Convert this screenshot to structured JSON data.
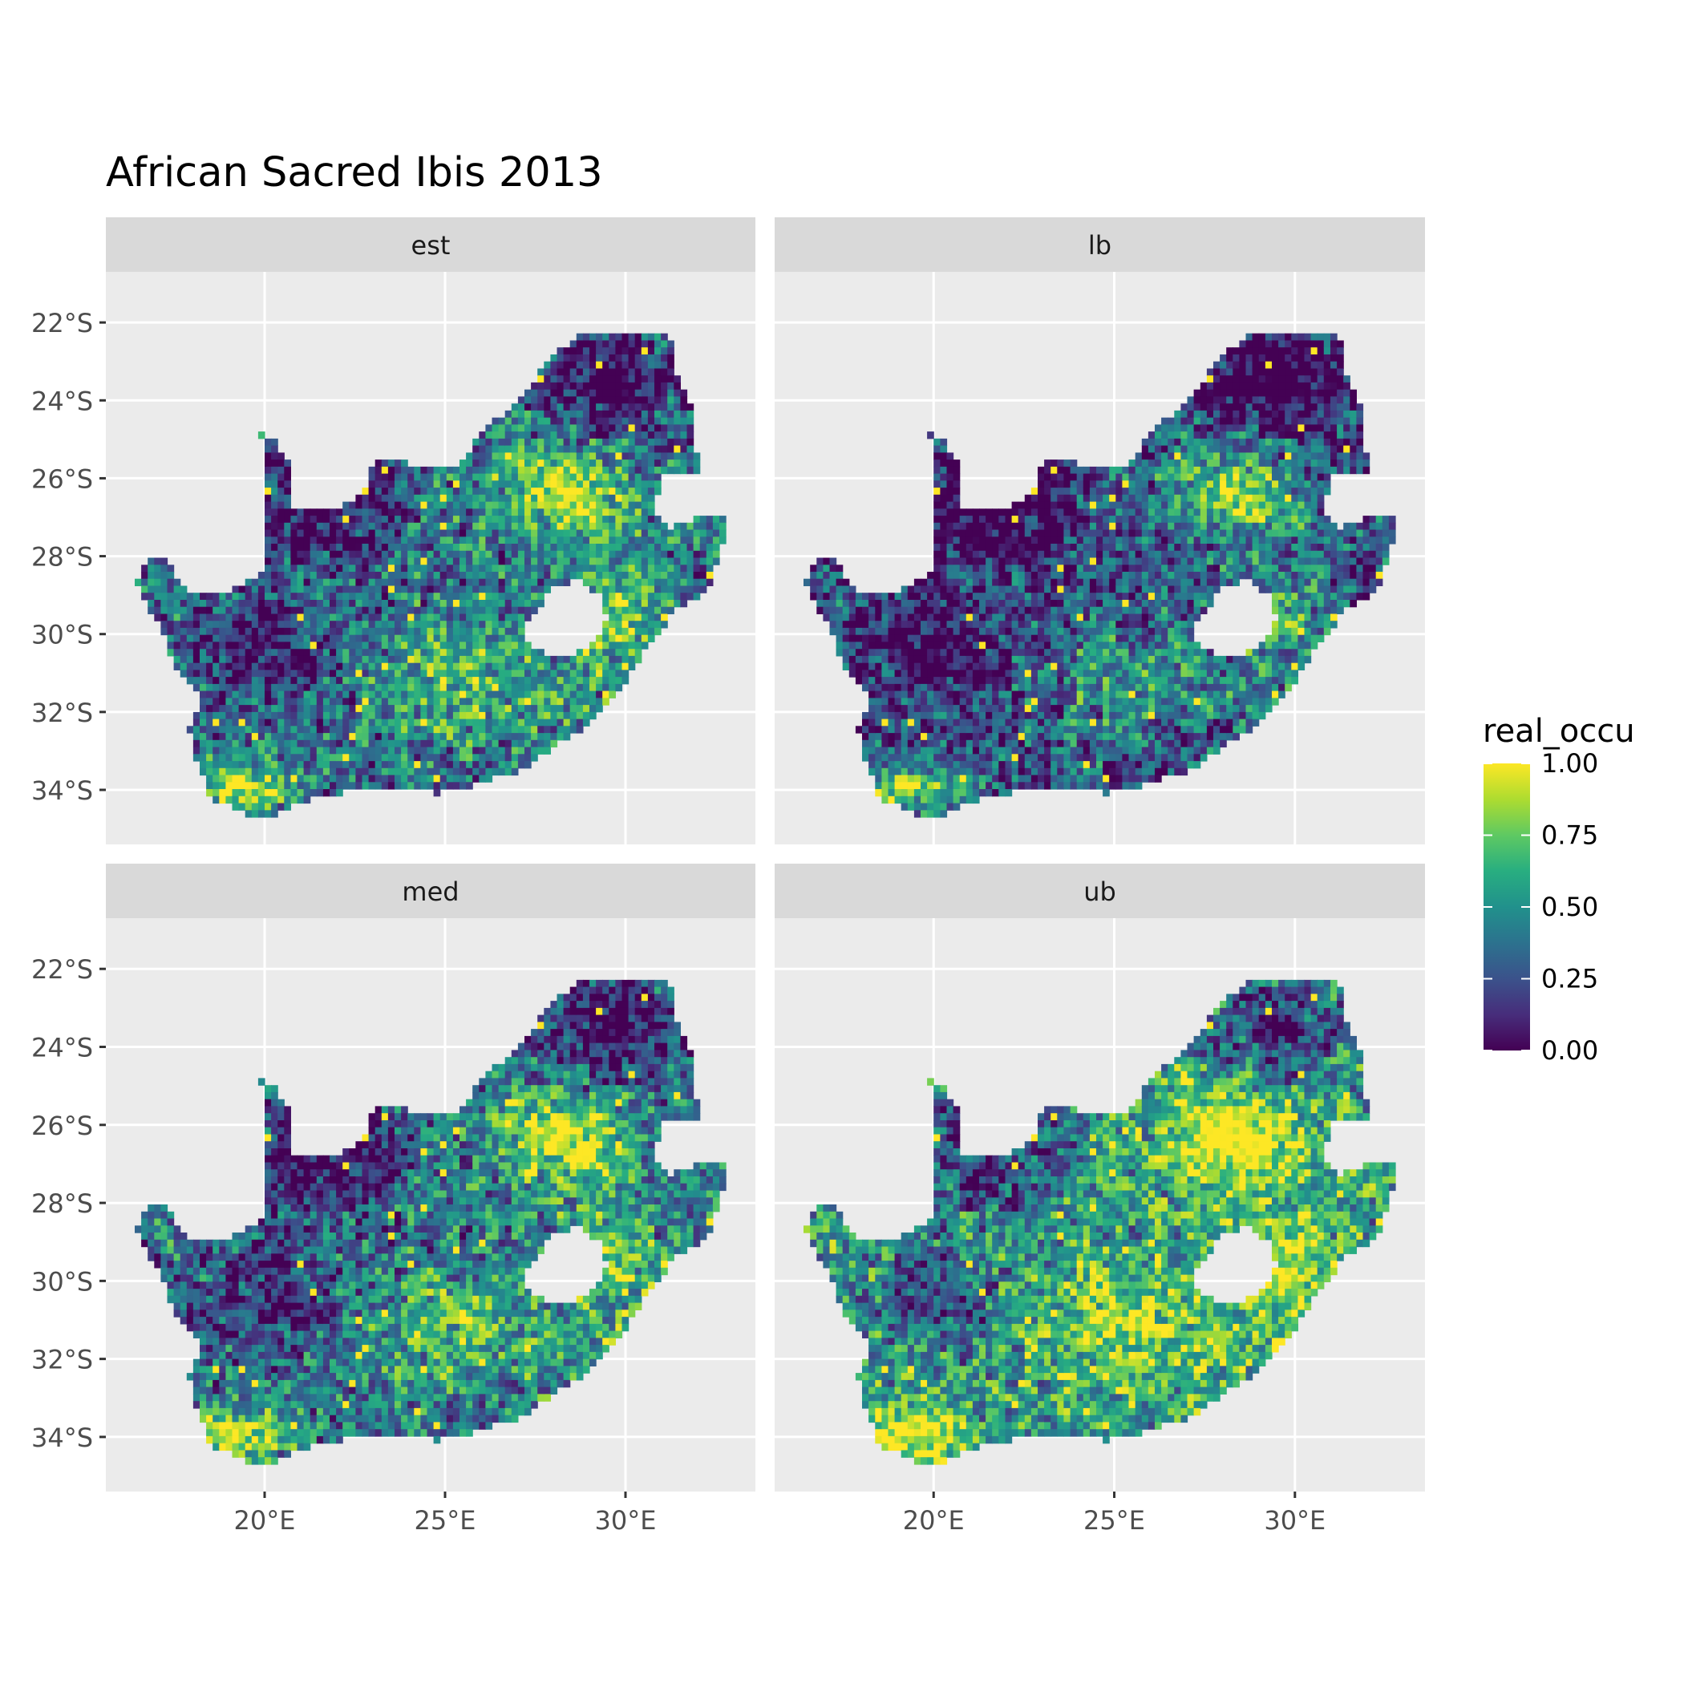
{
  "title": "African Sacred Ibis 2013",
  "legend": {
    "title": "real_occu",
    "labels": [
      "1.00",
      "0.75",
      "0.50",
      "0.25",
      "0.00"
    ],
    "values": [
      1.0,
      0.75,
      0.5,
      0.25,
      0.0
    ]
  },
  "colors": {
    "panel_bg": "#ebebeb",
    "strip_bg": "#d9d9d9",
    "grid": "#ffffff",
    "viridis_low": "#440154",
    "viridis_high": "#fde725"
  },
  "x_ticks": [
    "20°E",
    "25°E",
    "30°E"
  ],
  "y_ticks": [
    "22°S",
    "24°S",
    "26°S",
    "28°S",
    "30°S",
    "32°S",
    "34°S"
  ],
  "chart_data": {
    "type": "heatmap",
    "title": "African Sacred Ibis 2013",
    "facets": [
      "est",
      "lb",
      "med",
      "ub"
    ],
    "x_range": [
      15.6,
      33.6
    ],
    "y_range": [
      -35.4,
      -20.7
    ],
    "x_ticks": [
      20,
      25,
      30
    ],
    "y_ticks": [
      -22,
      -24,
      -26,
      -28,
      -30,
      -32,
      -34
    ],
    "fill_variable": "real_occu",
    "fill_range": [
      0,
      1
    ],
    "colorscale": "viridis",
    "grid": true
  }
}
